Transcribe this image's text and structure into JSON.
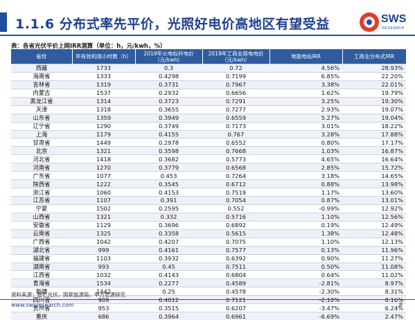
{
  "header": {
    "title": "1.1.6 分布式率先平价，光照好电价高地区有望受益"
  },
  "logo": {
    "name": "SWS",
    "subtitle": "RESEARCH"
  },
  "table": {
    "caption": "表：各省光伏平价上网IRR测算（单位：h，元/kwh，%）",
    "columns": [
      "省份",
      "年有效利用小时数（h）",
      "2019年火电标杆电价（元/kwh）",
      "2019年工商业用电电价（元/kwh）",
      "地面电站IRR",
      "工商业分布式IRR"
    ],
    "rows": [
      [
        "西藏",
        "1733",
        "0.3",
        "0.72",
        "4.56%",
        "28.93%"
      ],
      [
        "海南省",
        "1333",
        "0.4298",
        "0.7199",
        "6.85%",
        "22.20%"
      ],
      [
        "吉林省",
        "1319",
        "0.3731",
        "0.7967",
        "3.38%",
        "22.01%"
      ],
      [
        "内蒙古",
        "1537",
        "0.2932",
        "0.6656",
        "1.62%",
        "19.79%"
      ],
      [
        "黑龙江省",
        "1314",
        "0.3723",
        "0.7291",
        "3.25%",
        "19.30%"
      ],
      [
        "天津",
        "1318",
        "0.3655",
        "0.7277",
        "2.93%",
        "19.07%"
      ],
      [
        "山东省",
        "1359",
        "0.3949",
        "0.6559",
        "5.27%",
        "19.04%"
      ],
      [
        "辽宁省",
        "1290",
        "0.3749",
        "0.7173",
        "3.01%",
        "18.22%"
      ],
      [
        "上海",
        "1179",
        "0.4155",
        "0.767",
        "3.28%",
        "17.88%"
      ],
      [
        "甘肃省",
        "1449",
        "0.2978",
        "0.6552",
        "0.80%",
        "17.17%"
      ],
      [
        "北京",
        "1321",
        "0.3598",
        "0.7668",
        "1.03%",
        "16.87%"
      ],
      [
        "河北省",
        "1418",
        "0.3682",
        "0.5773",
        "4.65%",
        "16.64%"
      ],
      [
        "河南省",
        "1270",
        "0.3779",
        "0.6568",
        "2.85%",
        "15.72%"
      ],
      [
        "广东省",
        "1077",
        "0.453",
        "0.7264",
        "3.18%",
        "14.65%"
      ],
      [
        "陕西省",
        "1222",
        "0.3545",
        "0.6712",
        "0.88%",
        "13.98%"
      ],
      [
        "浙江省",
        "1060",
        "0.4153",
        "0.7519",
        "1.17%",
        "13.60%"
      ],
      [
        "江苏省",
        "1107",
        "0.391",
        "0.7054",
        "0.87%",
        "13.01%"
      ],
      [
        "宁夏",
        "1502",
        "0.2595",
        "0.552",
        "-0.99%",
        "12.92%"
      ],
      [
        "山西省",
        "1321",
        "0.332",
        "0.5716",
        "1.10%",
        "12.56%"
      ],
      [
        "安徽省",
        "1129",
        "0.3696",
        "0.6892",
        "0.19%",
        "12.49%"
      ],
      [
        "云南省",
        "1325",
        "0.3358",
        "0.5615",
        "1.38%",
        "12.48%"
      ],
      [
        "广西省",
        "1042",
        "0.4207",
        "0.7075",
        "1.10%",
        "12.13%"
      ],
      [
        "湖北省",
        "999",
        "0.4161",
        "0.7577",
        "0.13%",
        "11.96%"
      ],
      [
        "福建省",
        "1103",
        "0.3932",
        "0.6392",
        "0.90%",
        "11.27%"
      ],
      [
        "湖南省",
        "993",
        "0.45",
        "0.7511",
        "0.50%",
        "11.08%"
      ],
      [
        "江西省",
        "1032",
        "0.4143",
        "0.6804",
        "0.64%",
        "11.02%"
      ],
      [
        "青海省",
        "1534",
        "0.2277",
        "0.4589",
        "-2.81%",
        "8.97%"
      ],
      [
        "新疆",
        "1442",
        "0.25",
        "0.4578",
        "-2.30%",
        "8.31%"
      ],
      [
        "四川省",
        "909",
        "0.4012",
        "0.7121",
        "-2.10%",
        "8.16%"
      ],
      [
        "贵州省",
        "953",
        "0.3515",
        "0.6207",
        "-3.47%",
        "6.24%"
      ],
      [
        "重庆",
        "686",
        "0.3964",
        "0.6961",
        "-6.69%",
        "2.47%"
      ]
    ]
  },
  "footer": {
    "source": "资料来源：智汇光伏，国家能源局，申万宏源研究",
    "url": "www.swsresearch.com",
    "page": "8"
  },
  "colors": {
    "brand_blue": "#1f4fa0",
    "header_fill": "#2e5c9e",
    "logo_red": "#e23b2a"
  }
}
